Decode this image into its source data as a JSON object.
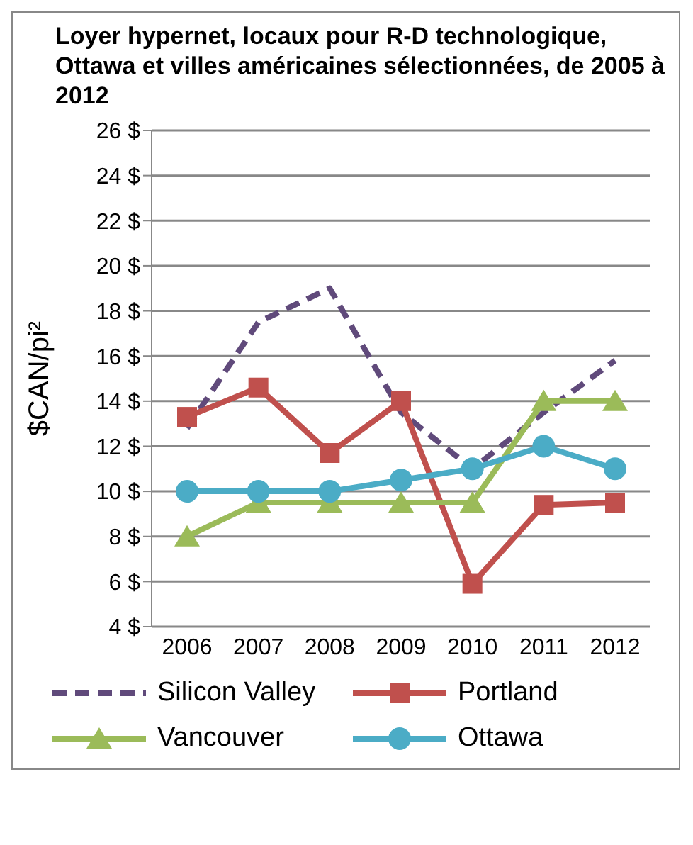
{
  "chart_data": {
    "type": "line",
    "title": "Loyer hypernet, locaux pour R-D technologique, Ottawa et villes américaines sélectionnées, de 2005 à 2012",
    "ylabel": "$CAN/pi²",
    "categories": [
      "2006",
      "2007",
      "2008",
      "2009",
      "2010",
      "2011",
      "2012"
    ],
    "series": [
      {
        "name": "Silicon Valley",
        "color": "#604a7b",
        "values": [
          12.8,
          17.5,
          19,
          13.5,
          11,
          13.5,
          15.8
        ],
        "marker": "none",
        "line_style": "dashed"
      },
      {
        "name": "Portland",
        "color": "#c0504d",
        "values": [
          13.3,
          14.6,
          11.7,
          14,
          5.9,
          9.4,
          9.5
        ],
        "marker": "square",
        "line_style": "solid"
      },
      {
        "name": "Vancouver",
        "color": "#9bbb59",
        "values": [
          8,
          9.5,
          9.5,
          9.5,
          9.5,
          14,
          14
        ],
        "marker": "triangle",
        "line_style": "solid"
      },
      {
        "name": "Ottawa",
        "color": "#4bacc6",
        "values": [
          10,
          10,
          10,
          10.5,
          11,
          12,
          11
        ],
        "marker": "circle",
        "line_style": "solid"
      }
    ],
    "ylim": [
      4,
      26
    ],
    "yticks": [
      {
        "value": 4,
        "label": "4 $"
      },
      {
        "value": 6,
        "label": "6 $"
      },
      {
        "value": 8,
        "label": "8 $"
      },
      {
        "value": 10,
        "label": "10 $"
      },
      {
        "value": 12,
        "label": "12 $"
      },
      {
        "value": 14,
        "label": "14 $"
      },
      {
        "value": 16,
        "label": "16 $"
      },
      {
        "value": 18,
        "label": "18 $"
      },
      {
        "value": 20,
        "label": "20 $"
      },
      {
        "value": 22,
        "label": "22 $"
      },
      {
        "value": 24,
        "label": "24 $"
      },
      {
        "value": 26,
        "label": "26 $"
      }
    ],
    "grid": "y",
    "legend": "bottom"
  }
}
